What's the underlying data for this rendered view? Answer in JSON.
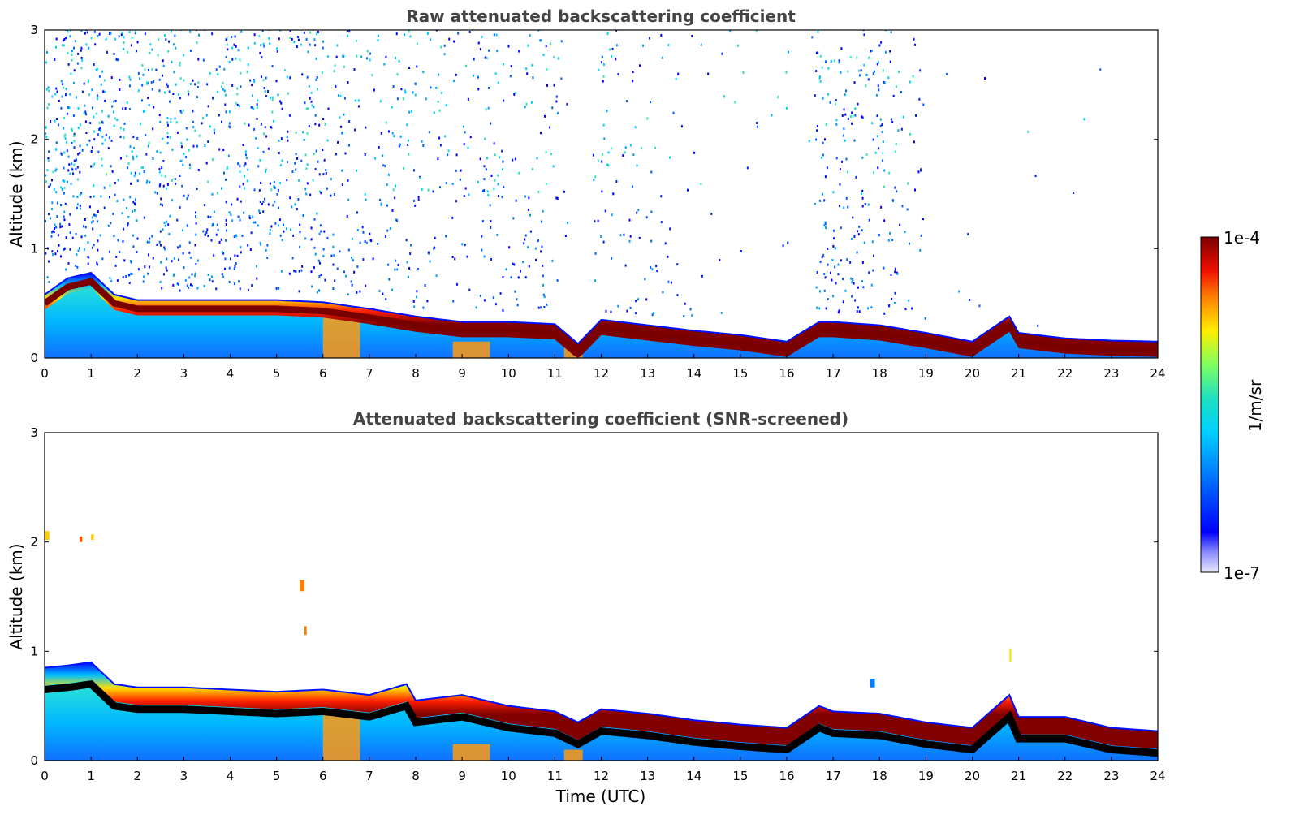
{
  "chart_data": [
    {
      "type": "heatmap",
      "title": "Raw attenuated backscattering coefficient",
      "xlabel": "",
      "ylabel": "Altitude (km)",
      "xlim": [
        0,
        24
      ],
      "ylim": [
        0,
        3
      ],
      "xticks": [
        0,
        1,
        2,
        3,
        4,
        5,
        6,
        7,
        8,
        9,
        10,
        11,
        12,
        13,
        14,
        15,
        16,
        17,
        18,
        19,
        20,
        21,
        22,
        23,
        24
      ],
      "yticks": [
        0,
        1,
        2,
        3
      ],
      "boundary_layer_top_km": [
        [
          0,
          0.55
        ],
        [
          0.5,
          0.7
        ],
        [
          1,
          0.75
        ],
        [
          1.5,
          0.55
        ],
        [
          2,
          0.5
        ],
        [
          3,
          0.5
        ],
        [
          4,
          0.5
        ],
        [
          5,
          0.5
        ],
        [
          6,
          0.48
        ],
        [
          7,
          0.42
        ],
        [
          8,
          0.35
        ],
        [
          9,
          0.3
        ],
        [
          10,
          0.3
        ],
        [
          11,
          0.28
        ],
        [
          11.5,
          0.1
        ],
        [
          12,
          0.32
        ],
        [
          13,
          0.27
        ],
        [
          14,
          0.22
        ],
        [
          15,
          0.18
        ],
        [
          16,
          0.12
        ],
        [
          16.7,
          0.3
        ],
        [
          17,
          0.3
        ],
        [
          18,
          0.27
        ],
        [
          19,
          0.2
        ],
        [
          20,
          0.12
        ],
        [
          20.8,
          0.35
        ],
        [
          21,
          0.2
        ],
        [
          22,
          0.15
        ],
        [
          23,
          0.13
        ],
        [
          24,
          0.12
        ]
      ],
      "noise_density": [
        [
          0,
          0.9
        ],
        [
          2,
          0.85
        ],
        [
          4,
          0.8
        ],
        [
          6,
          0.6
        ],
        [
          7,
          0.35
        ],
        [
          9,
          0.35
        ],
        [
          11,
          0.4
        ],
        [
          11.3,
          0.0
        ],
        [
          11.7,
          0.0
        ],
        [
          12,
          0.4
        ],
        [
          13,
          0.2
        ],
        [
          14,
          0.05
        ],
        [
          15,
          0.03
        ],
        [
          16.5,
          0.02
        ],
        [
          16.7,
          0.7
        ],
        [
          18,
          0.7
        ],
        [
          18.7,
          0.3
        ],
        [
          19,
          0.02
        ],
        [
          21,
          0.02
        ],
        [
          22,
          0.01
        ],
        [
          24,
          0.0
        ]
      ]
    },
    {
      "type": "heatmap",
      "title": "Attenuated backscattering coefficient (SNR-screened)",
      "xlabel": "Time (UTC)",
      "ylabel": "Altitude (km)",
      "xlim": [
        0,
        24
      ],
      "ylim": [
        0,
        3
      ],
      "xticks": [
        0,
        1,
        2,
        3,
        4,
        5,
        6,
        7,
        8,
        9,
        10,
        11,
        12,
        13,
        14,
        15,
        16,
        17,
        18,
        19,
        20,
        21,
        22,
        23,
        24
      ],
      "yticks": [
        0,
        1,
        2,
        3
      ],
      "boundary_layer_top_km": [
        [
          0,
          0.8
        ],
        [
          0.5,
          0.82
        ],
        [
          1,
          0.85
        ],
        [
          1.5,
          0.65
        ],
        [
          2,
          0.62
        ],
        [
          3,
          0.62
        ],
        [
          4,
          0.6
        ],
        [
          5,
          0.58
        ],
        [
          6,
          0.6
        ],
        [
          7,
          0.55
        ],
        [
          7.8,
          0.65
        ],
        [
          8,
          0.5
        ],
        [
          9,
          0.55
        ],
        [
          10,
          0.45
        ],
        [
          11,
          0.4
        ],
        [
          11.5,
          0.3
        ],
        [
          12,
          0.42
        ],
        [
          13,
          0.38
        ],
        [
          14,
          0.32
        ],
        [
          15,
          0.28
        ],
        [
          16,
          0.25
        ],
        [
          16.7,
          0.45
        ],
        [
          17,
          0.4
        ],
        [
          18,
          0.38
        ],
        [
          19,
          0.3
        ],
        [
          20,
          0.25
        ],
        [
          20.8,
          0.55
        ],
        [
          21,
          0.35
        ],
        [
          22,
          0.35
        ],
        [
          23,
          0.25
        ],
        [
          24,
          0.22
        ]
      ]
    }
  ],
  "colorbar": {
    "label": "1/m/sr",
    "max_label": "1e-4",
    "min_label": "1e-7",
    "colormap": "jet"
  }
}
